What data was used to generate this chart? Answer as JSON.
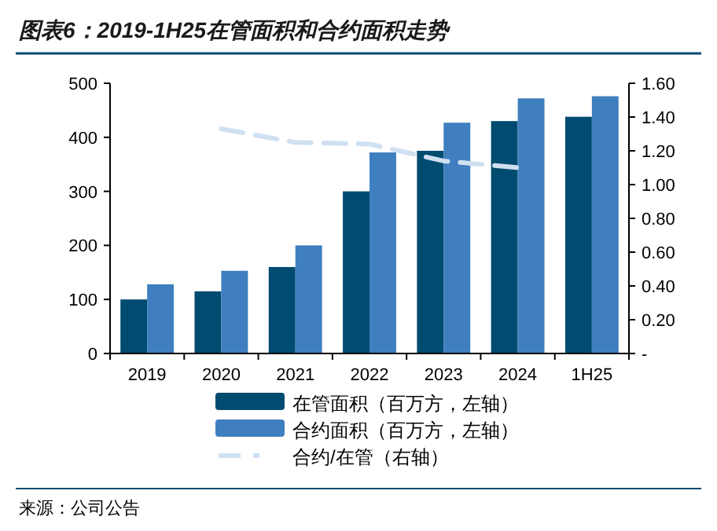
{
  "chart_data": {
    "type": "bar",
    "title": "图表6：2019-1H25在管面积和合约面积走势",
    "categories": [
      "2019",
      "2020",
      "2021",
      "2022",
      "2023",
      "2024",
      "1H25"
    ],
    "series": [
      {
        "name": "在管面积（百万方，左轴）",
        "color": "#004b70",
        "values": [
          100,
          115,
          160,
          300,
          375,
          430,
          438
        ]
      },
      {
        "name": "合约面积（百万方，左轴）",
        "color": "#3f7fbf",
        "values": [
          128,
          153,
          200,
          372,
          427,
          472,
          476
        ]
      },
      {
        "name": "合约/在管（右轴）",
        "type": "line",
        "axis": "y2",
        "color": "#cfe0f1",
        "line_style": "dashed",
        "values": [
          null,
          1.33,
          1.25,
          1.24,
          1.14,
          1.1,
          null
        ]
      }
    ],
    "ylim": [
      0,
      500
    ],
    "yticks": [
      0,
      100,
      200,
      300,
      400,
      500
    ],
    "y2lim": [
      0,
      1.6
    ],
    "y2ticks": [
      {
        "value": 0,
        "label": "-"
      },
      {
        "value": 0.2,
        "label": "0.20"
      },
      {
        "value": 0.4,
        "label": "0.40"
      },
      {
        "value": 0.6,
        "label": "0.60"
      },
      {
        "value": 0.8,
        "label": "0.80"
      },
      {
        "value": 1,
        "label": "1.00"
      },
      {
        "value": 1.2,
        "label": "1.20"
      },
      {
        "value": 1.4,
        "label": "1.40"
      },
      {
        "value": 1.6,
        "label": "1.60"
      }
    ],
    "legend": "bottom",
    "annotations": [
      "来源：公司公告"
    ]
  }
}
